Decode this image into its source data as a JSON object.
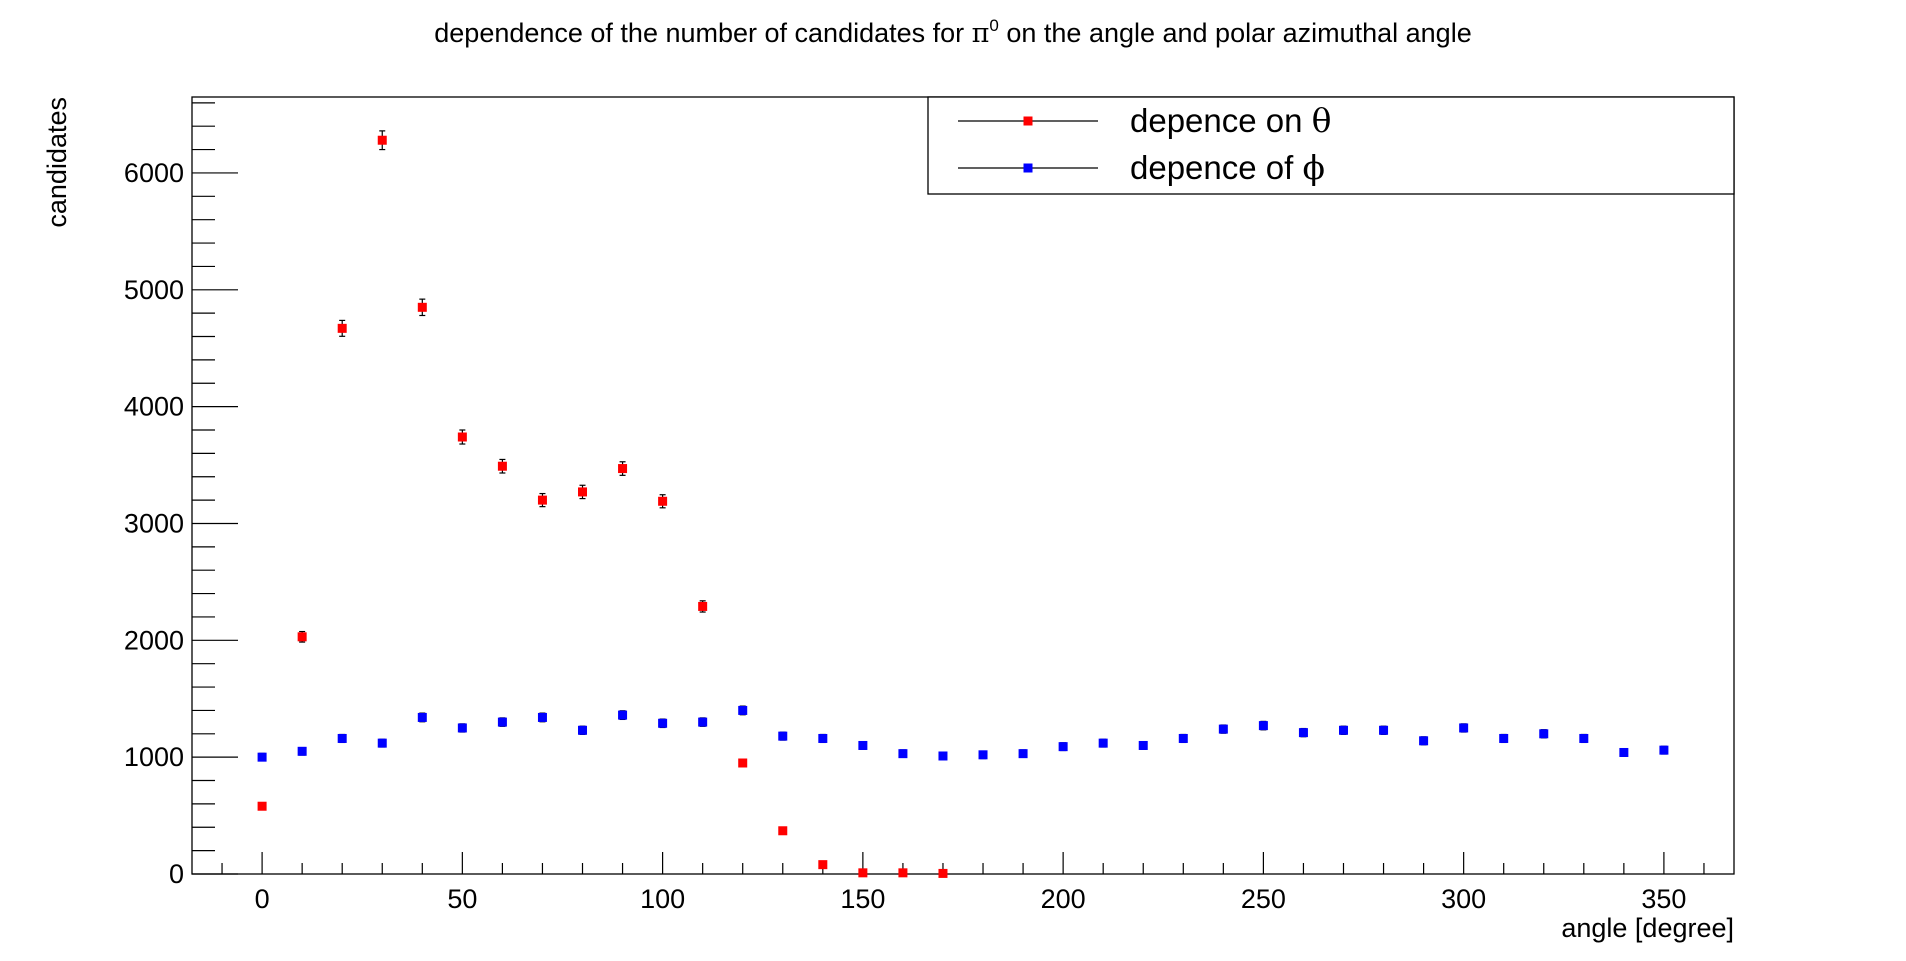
{
  "chart_data": {
    "type": "scatter",
    "title_prefix": "dependence of the number of candidates for ",
    "title_symbol": "π",
    "title_superscript": "0",
    "title_suffix": " on the angle and polar azimuthal angle",
    "xlabel": "angle [degree]",
    "ylabel": "candidates",
    "xlim": [
      -17.5,
      367.5
    ],
    "ylim": [
      0,
      6650
    ],
    "xticks": [
      0,
      50,
      100,
      150,
      200,
      250,
      300,
      350
    ],
    "yticks": [
      0,
      1000,
      2000,
      3000,
      4000,
      5000,
      6000
    ],
    "xtick_labels": [
      "0",
      "50",
      "100",
      "150",
      "200",
      "250",
      "300",
      "350"
    ],
    "ytick_labels": [
      "0",
      "1000",
      "2000",
      "3000",
      "4000",
      "5000",
      "6000"
    ],
    "grid": false,
    "legend_position": "top-right",
    "series": [
      {
        "name_prefix": "depence on ",
        "name_symbol": "θ",
        "color": "#ff0000",
        "x": [
          0,
          10,
          20,
          30,
          40,
          50,
          60,
          70,
          80,
          90,
          100,
          110,
          120,
          130,
          140,
          150,
          160,
          170
        ],
        "y": [
          580,
          2030,
          4670,
          6280,
          4850,
          3740,
          3490,
          3200,
          3270,
          3470,
          3190,
          2290,
          950,
          370,
          80,
          10,
          10,
          5
        ],
        "err": [
          25,
          45,
          68,
          80,
          70,
          60,
          58,
          56,
          57,
          58,
          56,
          48,
          31,
          19,
          9,
          3,
          3,
          2
        ]
      },
      {
        "name_prefix": "depence of ",
        "name_symbol": "ϕ",
        "color": "#0000ff",
        "x": [
          0,
          10,
          20,
          30,
          40,
          50,
          60,
          70,
          80,
          90,
          100,
          110,
          120,
          130,
          140,
          150,
          160,
          170,
          180,
          190,
          200,
          210,
          220,
          230,
          240,
          250,
          260,
          270,
          280,
          290,
          300,
          310,
          320,
          330,
          340,
          350
        ],
        "y": [
          1000,
          1050,
          1160,
          1120,
          1340,
          1250,
          1300,
          1340,
          1230,
          1360,
          1290,
          1300,
          1400,
          1180,
          1160,
          1100,
          1030,
          1010,
          1020,
          1030,
          1090,
          1120,
          1100,
          1160,
          1240,
          1270,
          1210,
          1230,
          1230,
          1140,
          1250,
          1160,
          1200,
          1160,
          1040,
          1060
        ],
        "err": [
          32,
          32,
          34,
          33,
          37,
          35,
          36,
          37,
          35,
          37,
          36,
          36,
          37,
          34,
          34,
          33,
          32,
          32,
          32,
          32,
          33,
          33,
          33,
          34,
          35,
          36,
          35,
          35,
          35,
          34,
          35,
          34,
          35,
          34,
          32,
          33
        ]
      }
    ]
  }
}
